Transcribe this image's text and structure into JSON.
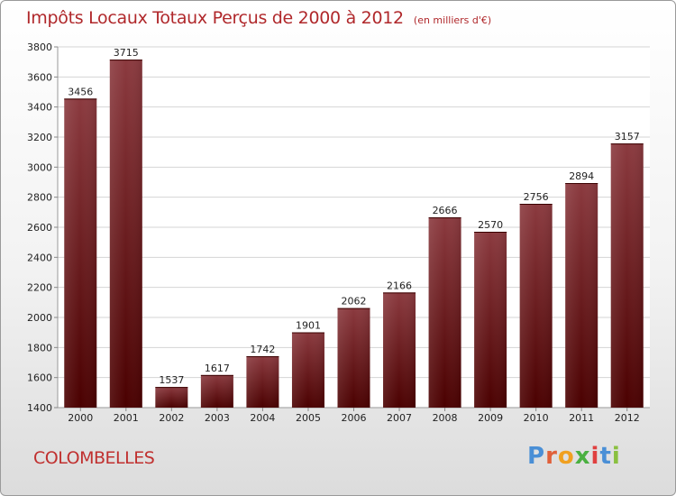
{
  "header": {
    "title": "Impôts Locaux Totaux Perçus de 2000 à 2012",
    "unit": "(en milliers d'€)"
  },
  "footer": {
    "commune": "COLOMBELLES",
    "logo_text": "Proxiti"
  },
  "colors": {
    "bar_top": "#8b3a3f",
    "bar_bottom": "#4a0000",
    "title": "#b0282b",
    "commune": "#c0302f",
    "logo_letters": [
      "#4a8fd6",
      "#e0603a",
      "#f0a020",
      "#4ab040",
      "#e04040",
      "#4a8fd6",
      "#8ac040"
    ]
  },
  "chart_data": {
    "type": "bar",
    "categories": [
      "2000",
      "2001",
      "2002",
      "2003",
      "2004",
      "2005",
      "2006",
      "2007",
      "2008",
      "2009",
      "2010",
      "2011",
      "2012"
    ],
    "values": [
      3456,
      3715,
      1537,
      1617,
      1742,
      1901,
      2062,
      2166,
      2666,
      2570,
      2756,
      2894,
      3157
    ],
    "title": "Impôts Locaux Totaux Perçus de 2000 à 2012",
    "subtitle": "(en milliers d'€)",
    "xlabel": "",
    "ylabel": "",
    "ylim": [
      1400,
      3800
    ],
    "yticks": [
      1400,
      1600,
      1800,
      2000,
      2200,
      2400,
      2600,
      2800,
      3000,
      3200,
      3400,
      3600,
      3800
    ],
    "grid": true,
    "data_labels": true
  }
}
